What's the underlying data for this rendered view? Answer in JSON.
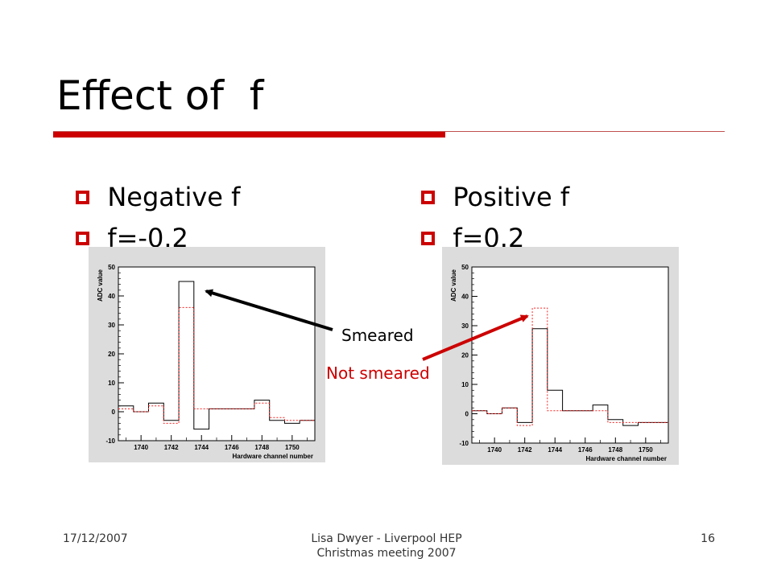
{
  "slide": {
    "title": "Effect of  f",
    "left_bullets": [
      "Negative f",
      "f=-0.2"
    ],
    "right_bullets": [
      "Positive f",
      "f=0.2"
    ],
    "annotations": {
      "smeared": "Smeared",
      "not_smeared": "Not smeared"
    },
    "footer": {
      "date": "17/12/2007",
      "center": "Lisa Dwyer -  Liverpool HEP Christmas meeting 2007",
      "page": "16"
    },
    "colors": {
      "accent": "#cc0000",
      "smeared_arrow": "#000000",
      "not_smeared_arrow": "#cc0000"
    }
  },
  "chart_data": [
    {
      "type": "histogram",
      "title": "",
      "xlabel": "Hardware channel number",
      "ylabel": "ADC value",
      "xlim": [
        1738.5,
        1751.5
      ],
      "ylim": [
        -10,
        50
      ],
      "xticks": [
        1740,
        1742,
        1744,
        1746,
        1748,
        1750
      ],
      "yticks": [
        -10,
        0,
        10,
        20,
        30,
        40,
        50
      ],
      "bin_edges": [
        1738.5,
        1739.5,
        1740.5,
        1741.5,
        1742.5,
        1743.5,
        1744.5,
        1745.5,
        1746.5,
        1747.5,
        1748.5,
        1749.5,
        1750.5,
        1751.5
      ],
      "series": [
        {
          "style": "solid-black",
          "values": [
            2,
            0,
            3,
            -3,
            45,
            -6,
            1,
            1,
            1,
            4,
            -3,
            -4,
            -3
          ]
        },
        {
          "style": "dotted-red",
          "values": [
            1,
            0,
            2,
            -4,
            36,
            1,
            1,
            1,
            1,
            3,
            -2,
            -3,
            -3
          ]
        }
      ]
    },
    {
      "type": "histogram",
      "title": "",
      "xlabel": "Hardware channel number",
      "ylabel": "ADC value",
      "xlim": [
        1738.5,
        1751.5
      ],
      "ylim": [
        -10,
        50
      ],
      "xticks": [
        1740,
        1742,
        1744,
        1746,
        1748,
        1750
      ],
      "yticks": [
        -10,
        0,
        10,
        20,
        30,
        40,
        50
      ],
      "bin_edges": [
        1738.5,
        1739.5,
        1740.5,
        1741.5,
        1742.5,
        1743.5,
        1744.5,
        1745.5,
        1746.5,
        1747.5,
        1748.5,
        1749.5,
        1750.5,
        1751.5
      ],
      "series": [
        {
          "style": "solid-black",
          "values": [
            1,
            0,
            2,
            -3,
            29,
            8,
            1,
            1,
            3,
            -2,
            -4,
            -3,
            -3
          ]
        },
        {
          "style": "dotted-red",
          "values": [
            1,
            0,
            2,
            -4,
            36,
            1,
            1,
            1,
            1,
            -3,
            -3,
            -3,
            -3
          ]
        }
      ]
    }
  ]
}
